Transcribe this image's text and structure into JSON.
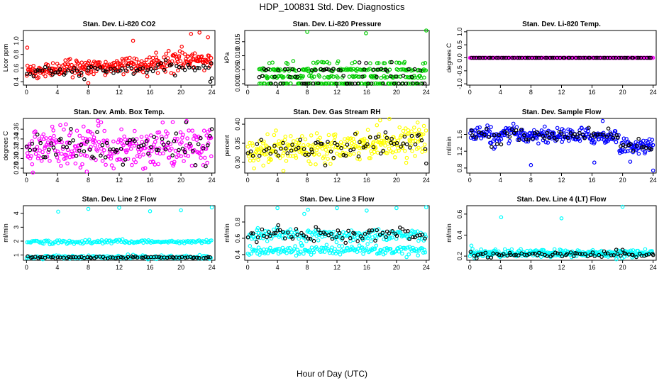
{
  "figure": {
    "title": "HDP_100831  Std. Dev. Diagnostics",
    "xlabel": "Hour of Day (UTC)"
  },
  "colors": {
    "black": "#000000",
    "red": "#ff0000",
    "green": "#00cc00",
    "magenta": "#ff00ff",
    "yellow": "#ffff00",
    "blue": "#0000ff",
    "cyan": "#00ffff",
    "axis": "#000000"
  },
  "chart_data": [
    {
      "type": "scatter",
      "title": "Stan. Dev. Li-820 CO2",
      "ylabel": "Licor ppm",
      "xlim": [
        -0.4,
        24.4
      ],
      "ylim": [
        0.35,
        1.15
      ],
      "xticks": [
        0,
        4,
        8,
        12,
        16,
        20,
        24
      ],
      "xtick_labels": [
        "0",
        "4",
        "8",
        "12",
        "16",
        "20",
        "24"
      ],
      "yticks": [
        0.4,
        0.6,
        0.8,
        1.0
      ],
      "ytick_labels": [
        "0.4",
        "0.6",
        "0.8",
        "1.0"
      ],
      "series": [
        {
          "name": "all",
          "color": "red",
          "n": 300,
          "gen": "trend",
          "base": 0.55,
          "slope": 0.006,
          "noise": 0.06,
          "skew": 0.05,
          "outliers": [
            [
              0.1,
              0.9
            ],
            [
              13.8,
              1.0
            ],
            [
              21.3,
              1.1
            ],
            [
              22.4,
              1.12
            ],
            [
              23.5,
              1.05
            ],
            [
              8.0,
              0.38
            ]
          ]
        },
        {
          "name": "hourly",
          "color": "black",
          "n": 72,
          "gen": "trend",
          "base": 0.52,
          "slope": 0.004,
          "noise": 0.04,
          "skew": 0.0,
          "outliers": [
            [
              23.8,
              0.4
            ],
            [
              24.0,
              0.45
            ]
          ]
        }
      ]
    },
    {
      "type": "scatter",
      "title": "Stan. Dev. Li-820 Pressure",
      "ylabel": "kPa",
      "xlim": [
        -0.4,
        24.4
      ],
      "ylim": [
        -0.0005,
        0.019
      ],
      "xticks": [
        0,
        4,
        8,
        12,
        16,
        20,
        24
      ],
      "xtick_labels": [
        "0",
        "4",
        "8",
        "12",
        "16",
        "20",
        "24"
      ],
      "yticks": [
        0.0,
        0.005,
        0.01,
        0.015
      ],
      "ytick_labels": [
        "0.000",
        "0.005",
        "0.010",
        "0.015"
      ],
      "series": [
        {
          "name": "all",
          "color": "green",
          "n": 300,
          "gen": "levels",
          "levels": [
            0.0,
            0.0025,
            0.005,
            0.0075
          ],
          "weights": [
            0.35,
            0.3,
            0.25,
            0.1
          ],
          "jitter": 0.0004,
          "xstart": 1.5,
          "outliers": [
            [
              8.0,
              0.0185
            ],
            [
              15.9,
              0.018
            ],
            [
              24.0,
              0.019
            ]
          ]
        },
        {
          "name": "hourly",
          "color": "black",
          "n": 72,
          "gen": "levels",
          "levels": [
            0.0,
            0.0025,
            0.005,
            0.0075
          ],
          "weights": [
            0.4,
            0.3,
            0.25,
            0.05
          ],
          "jitter": 0.0003,
          "xstart": 1.5,
          "outliers": []
        }
      ]
    },
    {
      "type": "scatter",
      "title": "Stan. Dev. Li-820 Temp.",
      "ylabel": "degrees C",
      "xlim": [
        -0.4,
        24.4
      ],
      "ylim": [
        -1.05,
        1.05
      ],
      "xticks": [
        0,
        4,
        8,
        12,
        16,
        20,
        24
      ],
      "xtick_labels": [
        "0",
        "4",
        "8",
        "12",
        "16",
        "20",
        "24"
      ],
      "yticks": [
        -1.0,
        -0.5,
        0.0,
        0.5,
        1.0
      ],
      "ytick_labels": [
        "-1.0",
        "-0.5",
        "0.0",
        "0.5",
        "1.0"
      ],
      "series": [
        {
          "name": "all",
          "color": "magenta",
          "n": 290,
          "gen": "constant",
          "value": 0.0,
          "noise": 0.0,
          "outliers": []
        },
        {
          "name": "hourly",
          "color": "black",
          "n": 72,
          "gen": "constant",
          "value": 0.0,
          "noise": 0.0,
          "outliers": []
        }
      ]
    },
    {
      "type": "scatter",
      "title": "Stan. Dev. Amb. Box Temp.",
      "ylabel": "degrees C",
      "xlim": [
        -0.4,
        24.4
      ],
      "ylim": [
        0.27,
        0.382
      ],
      "xticks": [
        0,
        4,
        8,
        12,
        16,
        20,
        24
      ],
      "xtick_labels": [
        "0",
        "4",
        "8",
        "12",
        "16",
        "20",
        "24"
      ],
      "yticks": [
        0.28,
        0.3,
        0.32,
        0.34,
        0.36
      ],
      "ytick_labels": [
        "0.28",
        "0.30",
        "0.32",
        "0.34",
        "0.36"
      ],
      "series": [
        {
          "name": "all",
          "color": "magenta",
          "n": 300,
          "gen": "band",
          "base": 0.322,
          "noise": 0.021,
          "outliers": [
            [
              7.8,
              0.273
            ],
            [
              5.1,
              0.37
            ]
          ]
        },
        {
          "name": "hourly",
          "color": "black",
          "n": 72,
          "gen": "band",
          "base": 0.322,
          "noise": 0.016,
          "outliers": [
            [
              24.0,
              0.36
            ]
          ]
        }
      ]
    },
    {
      "type": "scatter",
      "title": "Stan. Dev. Gas Stream RH",
      "ylabel": "percent",
      "xlim": [
        -0.4,
        24.4
      ],
      "ylim": [
        0.272,
        0.415
      ],
      "xticks": [
        0,
        4,
        8,
        12,
        16,
        20,
        24
      ],
      "xtick_labels": [
        "0",
        "4",
        "8",
        "12",
        "16",
        "20",
        "24"
      ],
      "yticks": [
        0.3,
        0.35,
        0.4
      ],
      "ytick_labels": [
        "0.30",
        "0.35",
        "0.40"
      ],
      "series": [
        {
          "name": "all",
          "color": "yellow",
          "n": 300,
          "gen": "trend",
          "base": 0.33,
          "slope": 0.0012,
          "noise": 0.018,
          "skew": 0.0,
          "outliers": [
            [
              17.8,
              0.41
            ],
            [
              4.8,
              0.278
            ]
          ]
        },
        {
          "name": "hourly",
          "color": "black",
          "n": 72,
          "gen": "trend",
          "base": 0.33,
          "slope": 0.001,
          "noise": 0.016,
          "skew": 0.0,
          "outliers": [
            [
              24.0,
              0.297
            ]
          ]
        }
      ]
    },
    {
      "type": "scatter",
      "title": "Stan. Dev. Sample Flow",
      "ylabel": "ml/min",
      "xlim": [
        -0.4,
        24.4
      ],
      "ylim": [
        0.68,
        1.98
      ],
      "xticks": [
        0,
        4,
        8,
        12,
        16,
        20,
        24
      ],
      "xtick_labels": [
        "0",
        "4",
        "8",
        "12",
        "16",
        "20",
        "24"
      ],
      "yticks": [
        0.8,
        1.2,
        1.6
      ],
      "ytick_labels": [
        "0.8",
        "1.2",
        "1.6"
      ],
      "series": [
        {
          "name": "all",
          "color": "blue",
          "n": 300,
          "gen": "sample",
          "noise": 0.09,
          "outliers": [
            [
              8.0,
              0.87
            ],
            [
              16.3,
              0.93
            ],
            [
              24.0,
              0.74
            ],
            [
              17.4,
              1.92
            ],
            [
              21.0,
              0.95
            ]
          ]
        },
        {
          "name": "hourly",
          "color": "black",
          "n": 72,
          "gen": "sample",
          "noise": 0.07,
          "outliers": []
        }
      ]
    },
    {
      "type": "scatter",
      "title": "Stan. Dev. Line 2 Flow",
      "ylabel": "ml/min",
      "xlim": [
        -0.4,
        24.4
      ],
      "ylim": [
        0.62,
        4.55
      ],
      "xticks": [
        0,
        4,
        8,
        12,
        16,
        20,
        24
      ],
      "xtick_labels": [
        "0",
        "4",
        "8",
        "12",
        "16",
        "20",
        "24"
      ],
      "yticks": [
        1,
        2,
        3,
        4
      ],
      "ytick_labels": [
        "1",
        "2",
        "3",
        "4"
      ],
      "series": [
        {
          "name": "all",
          "color": "cyan",
          "n": 300,
          "gen": "twolevel",
          "levels": [
            0.85,
            1.95
          ],
          "noise": 0.07,
          "bump": [
            12.0,
            1.0,
            0.45
          ],
          "outliers": [
            [
              4.1,
              4.12
            ],
            [
              8.0,
              4.32
            ],
            [
              12.0,
              4.4
            ],
            [
              16.0,
              4.15
            ],
            [
              20.0,
              4.22
            ],
            [
              24.0,
              4.42
            ]
          ]
        },
        {
          "name": "hourly",
          "color": "black",
          "n": 72,
          "gen": "constant",
          "value": 0.83,
          "noise": 0.03,
          "outliers": []
        }
      ]
    },
    {
      "type": "scatter",
      "title": "Stan. Dev. Line 3 Flow",
      "ylabel": "ml/min",
      "xlim": [
        -0.4,
        24.4
      ],
      "ylim": [
        0.33,
        1.0
      ],
      "xticks": [
        0,
        4,
        8,
        12,
        16,
        20,
        24
      ],
      "xtick_labels": [
        "0",
        "4",
        "8",
        "12",
        "16",
        "20",
        "24"
      ],
      "yticks": [
        0.4,
        0.6,
        0.8
      ],
      "ytick_labels": [
        "0.4",
        "0.6",
        "0.8"
      ],
      "series": [
        {
          "name": "all",
          "color": "cyan",
          "n": 340,
          "gen": "twolevel",
          "levels": [
            0.45,
            0.64
          ],
          "noise": 0.035,
          "bump": [
            0,
            0,
            0
          ],
          "outliers": [
            [
              4.0,
              0.97
            ],
            [
              7.6,
              0.9
            ],
            [
              8.1,
              0.95
            ],
            [
              12.0,
              0.97
            ],
            [
              16.0,
              0.94
            ],
            [
              20.0,
              0.97
            ],
            [
              24.0,
              0.98
            ]
          ]
        },
        {
          "name": "hourly",
          "color": "black",
          "n": 72,
          "gen": "constant",
          "value": 0.64,
          "noise": 0.04,
          "outliers": [
            [
              4.1,
              0.76
            ]
          ]
        }
      ]
    },
    {
      "type": "scatter",
      "title": "Stan. Dev. Line 4 (LT) Flow",
      "ylabel": "ml/min",
      "xlim": [
        -0.4,
        24.4
      ],
      "ylim": [
        0.16,
        0.68
      ],
      "xticks": [
        0,
        4,
        8,
        12,
        16,
        20,
        24
      ],
      "xtick_labels": [
        "0",
        "4",
        "8",
        "12",
        "16",
        "20",
        "24"
      ],
      "yticks": [
        0.2,
        0.4,
        0.6
      ],
      "ytick_labels": [
        "0.2",
        "0.4",
        "0.6"
      ],
      "series": [
        {
          "name": "all",
          "color": "cyan",
          "n": 300,
          "gen": "band",
          "base": 0.225,
          "noise": 0.018,
          "outliers": [
            [
              4.1,
              0.57
            ],
            [
              12.0,
              0.56
            ],
            [
              20.0,
              0.67
            ],
            [
              0.2,
              0.3
            ]
          ]
        },
        {
          "name": "hourly",
          "color": "black",
          "n": 72,
          "gen": "band",
          "base": 0.215,
          "noise": 0.012,
          "outliers": [
            [
              20.0,
              0.26
            ],
            [
              24.0,
              0.21
            ]
          ]
        }
      ]
    }
  ]
}
